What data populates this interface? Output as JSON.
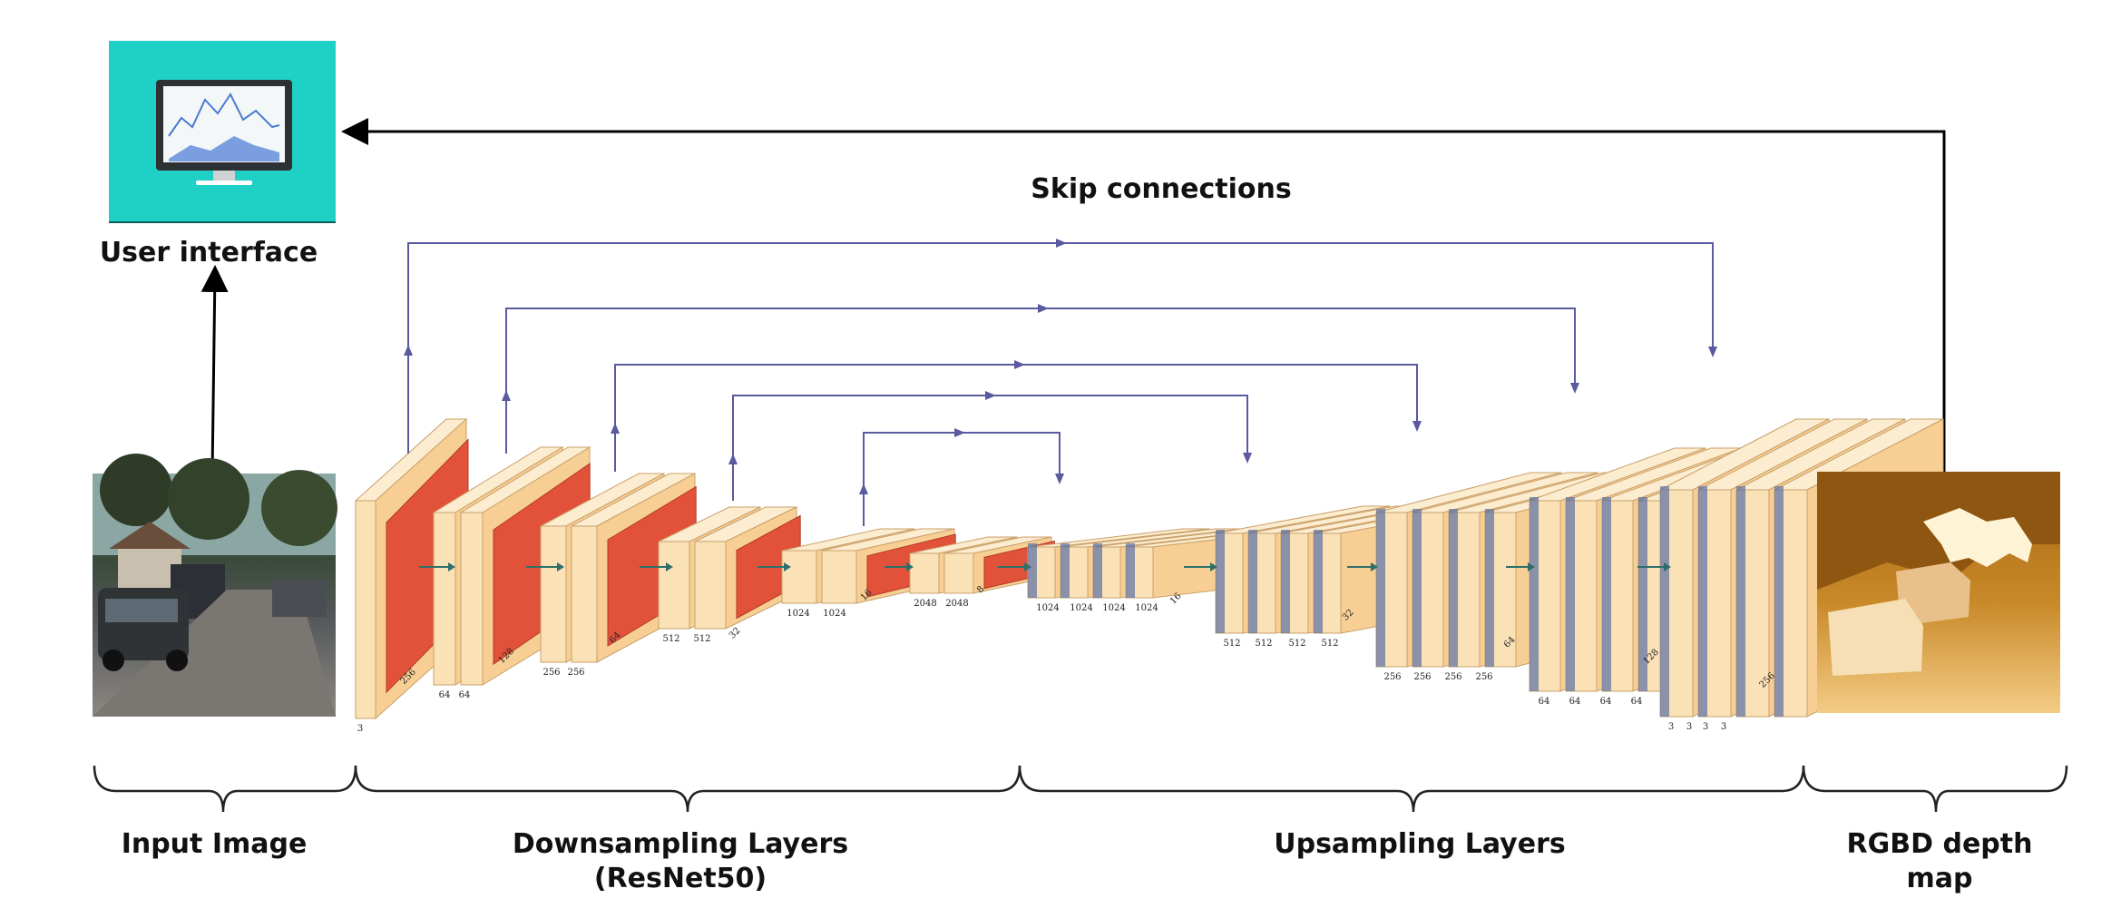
{
  "labels": {
    "user_interface": "User interface",
    "skip_connections": "Skip connections",
    "input_image": "Input Image",
    "downsampling_line1": "Downsampling Layers",
    "downsampling_line2": "(ResNet50)",
    "upsampling": "Upsampling Layers",
    "depth_line1": "RGBD depth",
    "depth_line2": "map"
  },
  "down_blocks": [
    {
      "dims": [
        "3",
        "256"
      ]
    },
    {
      "dims": [
        "64",
        "64",
        "128"
      ]
    },
    {
      "dims": [
        "256",
        "256",
        "64"
      ]
    },
    {
      "dims": [
        "512",
        "512",
        "32"
      ]
    },
    {
      "dims": [
        "1024",
        "1024",
        "16"
      ]
    },
    {
      "dims": [
        "2048",
        "2048",
        "8"
      ]
    }
  ],
  "up_blocks": [
    {
      "dims": [
        "1024",
        "1024",
        "1024",
        "1024",
        "16"
      ]
    },
    {
      "dims": [
        "512",
        "512",
        "512",
        "512",
        "32"
      ]
    },
    {
      "dims": [
        "256",
        "256",
        "256",
        "256",
        "64"
      ]
    },
    {
      "dims": [
        "64",
        "64",
        "64",
        "64",
        "128"
      ]
    },
    {
      "dims": [
        "3",
        "3",
        "3",
        "3",
        "256"
      ]
    }
  ],
  "colors": {
    "block_face": "#fbe2b6",
    "block_side": "#f7cf94",
    "block_top": "#fcecd0",
    "activation": "#e2523a",
    "upsample_tint": "#5b6fa3",
    "skip_line": "#5a5a9e",
    "ui_bg": "#1fd0c6",
    "arrow": "#000000"
  }
}
